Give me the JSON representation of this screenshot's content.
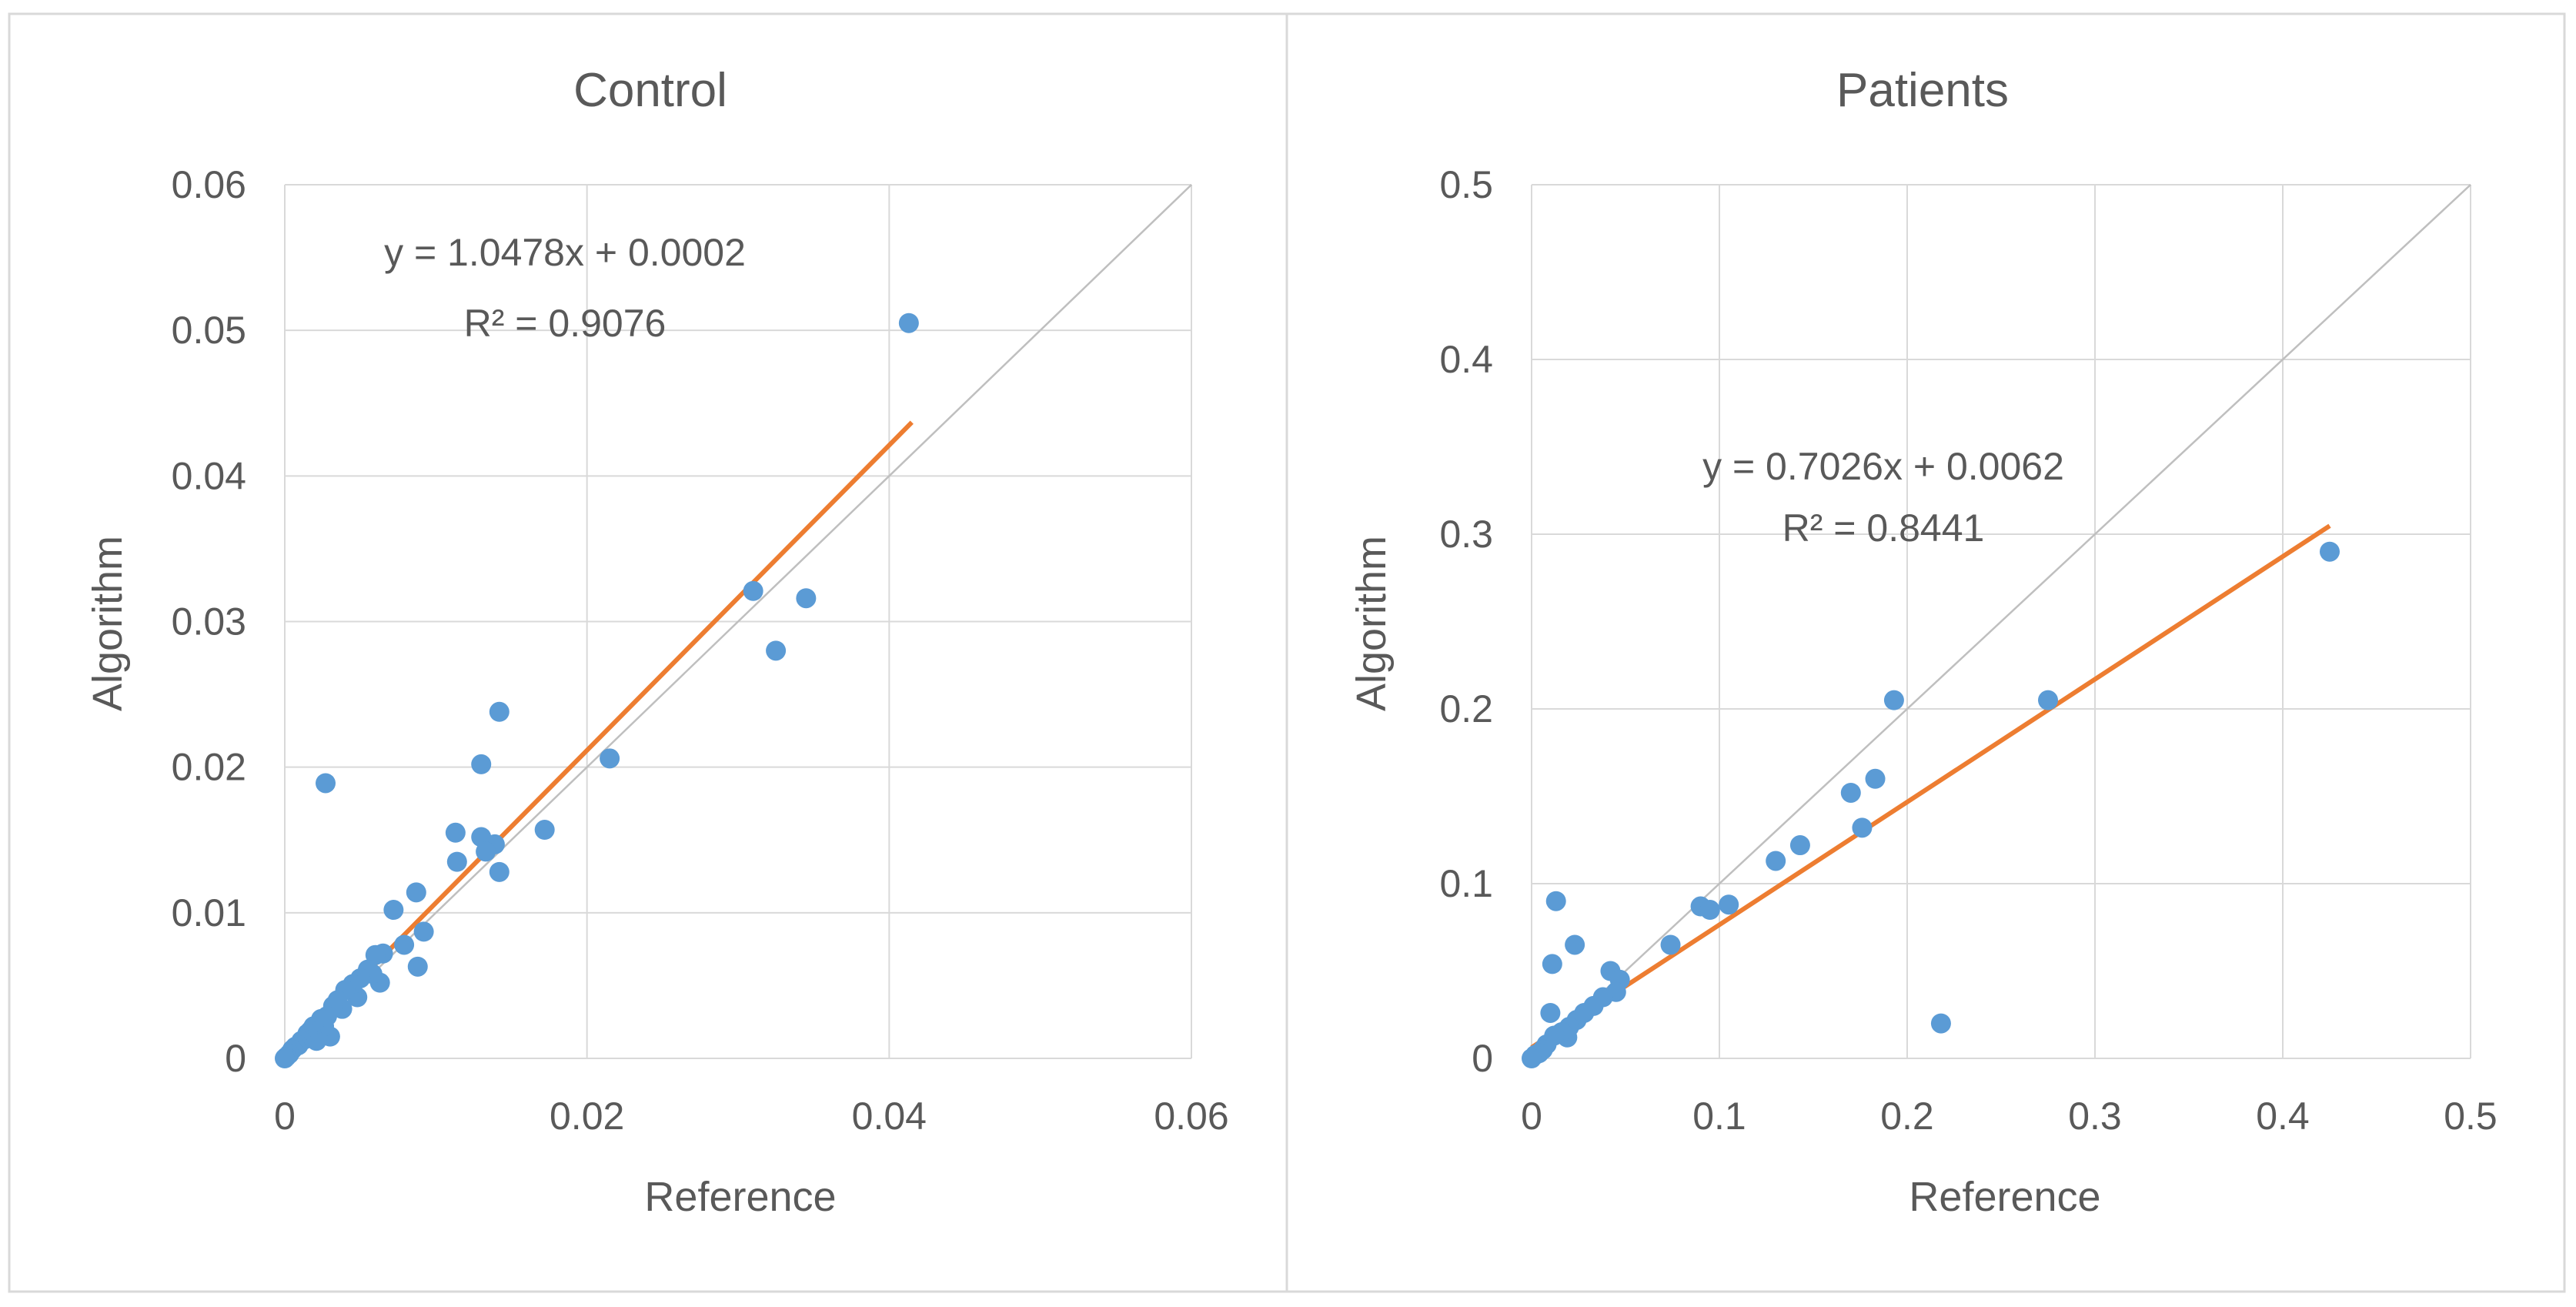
{
  "chart_data": [
    {
      "type": "scatter",
      "title": "Control",
      "xlabel": "Reference",
      "ylabel": "Algorithm",
      "xlim": [
        0,
        0.06
      ],
      "ylim": [
        0,
        0.06
      ],
      "xticks": [
        "0",
        "0.02",
        "0.04",
        "0.06"
      ],
      "yticks": [
        "0",
        "0.01",
        "0.02",
        "0.03",
        "0.04",
        "0.05",
        "0.06"
      ],
      "xtick_values": [
        0,
        0.02,
        0.04,
        0.06
      ],
      "ytick_values": [
        0,
        0.01,
        0.02,
        0.03,
        0.04,
        0.05,
        0.06
      ],
      "grid": true,
      "identity_line": true,
      "trendline": {
        "slope": 1.0478,
        "intercept": 0.0002,
        "x_range": [
          0,
          0.0415
        ]
      },
      "equation": "y = 1.0478x + 0.0002",
      "r_squared": "R² = 0.9076",
      "colors": {
        "points": "#5b9bd5",
        "trend": "#ed7d31",
        "identity": "#bfbfbf",
        "grid": "#d9d9d9"
      },
      "points": [
        [
          0.0413,
          0.0505
        ],
        [
          0.031,
          0.0321
        ],
        [
          0.0325,
          0.028
        ],
        [
          0.0345,
          0.0316
        ],
        [
          0.0142,
          0.0238
        ],
        [
          0.0215,
          0.0206
        ],
        [
          0.013,
          0.0202
        ],
        [
          0.0172,
          0.0157
        ],
        [
          0.0113,
          0.0155
        ],
        [
          0.013,
          0.0152
        ],
        [
          0.0139,
          0.0147
        ],
        [
          0.0114,
          0.0135
        ],
        [
          0.0133,
          0.0142
        ],
        [
          0.0142,
          0.0128
        ],
        [
          0.0027,
          0.0189
        ],
        [
          0.0087,
          0.0114
        ],
        [
          0.0072,
          0.0102
        ],
        [
          0.0092,
          0.0087
        ],
        [
          0.0088,
          0.0063
        ],
        [
          0.0079,
          0.0078
        ],
        [
          0.0065,
          0.0072
        ],
        [
          0.006,
          0.0071
        ],
        [
          0.0063,
          0.0052
        ],
        [
          0.0055,
          0.0061
        ],
        [
          0.0058,
          0.0058
        ],
        [
          0.005,
          0.0055
        ],
        [
          0.0048,
          0.0042
        ],
        [
          0.0045,
          0.0051
        ],
        [
          0.004,
          0.0047
        ],
        [
          0.0038,
          0.0034
        ],
        [
          0.0035,
          0.004
        ],
        [
          0.0032,
          0.0036
        ],
        [
          0.003,
          0.0015
        ],
        [
          0.0028,
          0.0029
        ],
        [
          0.0026,
          0.0022
        ],
        [
          0.0024,
          0.0027
        ],
        [
          0.0021,
          0.0012
        ],
        [
          0.0019,
          0.0022
        ],
        [
          0.0017,
          0.0019
        ],
        [
          0.0015,
          0.0017
        ],
        [
          0.0013,
          0.0013
        ],
        [
          0.0011,
          0.0012
        ],
        [
          0.0009,
          0.0009
        ],
        [
          0.0007,
          0.0008
        ],
        [
          0.0005,
          0.0006
        ],
        [
          0.0003,
          0.0003
        ],
        [
          0.0001,
          0.0001
        ],
        [
          0.0,
          0.0
        ]
      ]
    },
    {
      "type": "scatter",
      "title": "Patients",
      "xlabel": "Reference",
      "ylabel": "Algorithm",
      "xlim": [
        0,
        0.5
      ],
      "ylim": [
        0,
        0.5
      ],
      "xticks": [
        "0",
        "0.1",
        "0.2",
        "0.3",
        "0.4",
        "0.5"
      ],
      "yticks": [
        "0",
        "0.1",
        "0.2",
        "0.3",
        "0.4",
        "0.5"
      ],
      "xtick_values": [
        0,
        0.1,
        0.2,
        0.3,
        0.4,
        0.5
      ],
      "ytick_values": [
        0,
        0.1,
        0.2,
        0.3,
        0.4,
        0.5
      ],
      "grid": true,
      "identity_line": true,
      "trendline": {
        "slope": 0.7026,
        "intercept": 0.0062,
        "x_range": [
          0,
          0.425
        ]
      },
      "equation": "y = 0.7026x + 0.0062",
      "r_squared": "R² = 0.8441",
      "colors": {
        "points": "#5b9bd5",
        "trend": "#ed7d31",
        "identity": "#bfbfbf",
        "grid": "#d9d9d9"
      },
      "points": [
        [
          0.425,
          0.29
        ],
        [
          0.275,
          0.205
        ],
        [
          0.193,
          0.205
        ],
        [
          0.183,
          0.16
        ],
        [
          0.17,
          0.152
        ],
        [
          0.176,
          0.132
        ],
        [
          0.218,
          0.02
        ],
        [
          0.143,
          0.122
        ],
        [
          0.13,
          0.113
        ],
        [
          0.105,
          0.088
        ],
        [
          0.09,
          0.087
        ],
        [
          0.095,
          0.085
        ],
        [
          0.074,
          0.065
        ],
        [
          0.013,
          0.09
        ],
        [
          0.023,
          0.065
        ],
        [
          0.011,
          0.054
        ],
        [
          0.042,
          0.05
        ],
        [
          0.047,
          0.045
        ],
        [
          0.045,
          0.038
        ],
        [
          0.038,
          0.035
        ],
        [
          0.033,
          0.03
        ],
        [
          0.028,
          0.026
        ],
        [
          0.01,
          0.026
        ],
        [
          0.024,
          0.022
        ],
        [
          0.02,
          0.018
        ],
        [
          0.019,
          0.012
        ],
        [
          0.016,
          0.015
        ],
        [
          0.012,
          0.013
        ],
        [
          0.008,
          0.008
        ],
        [
          0.006,
          0.005
        ],
        [
          0.004,
          0.003
        ],
        [
          0.002,
          0.002
        ],
        [
          0.0,
          0.0
        ]
      ]
    }
  ]
}
